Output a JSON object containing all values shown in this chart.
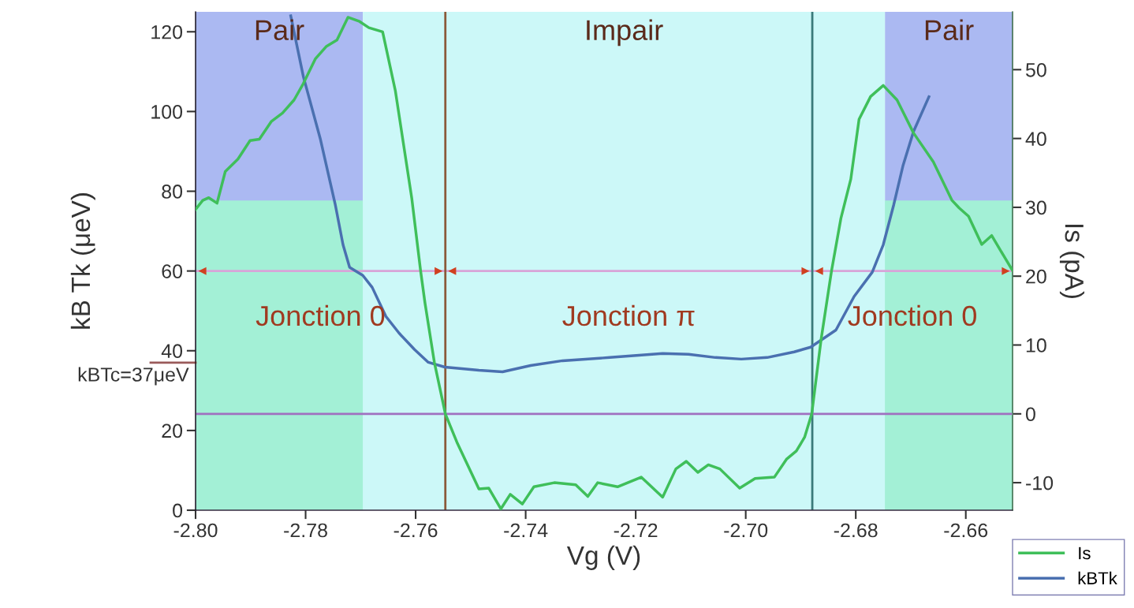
{
  "chart_data": {
    "type": "line",
    "xlabel": "Vg (V)",
    "ylabel": "kB Tk (μeV)",
    "y2label": "Is (pA)",
    "xlim": [
      -2.8,
      -2.6515
    ],
    "ylim": [
      0,
      125
    ],
    "y2lim": [
      -14,
      58.4
    ],
    "xticks": [
      {
        "value": -2.8,
        "label": "-2.80"
      },
      {
        "value": -2.78,
        "label": "-2.78"
      },
      {
        "value": -2.76,
        "label": "-2.76"
      },
      {
        "value": -2.74,
        "label": "-2.74"
      },
      {
        "value": -2.72,
        "label": "-2.72"
      },
      {
        "value": -2.7,
        "label": "-2.70"
      },
      {
        "value": -2.68,
        "label": "-2.68"
      },
      {
        "value": -2.66,
        "label": "-2.66"
      }
    ],
    "yticks": [
      0,
      20,
      40,
      60,
      80,
      100,
      120
    ],
    "y2ticks": [
      -10,
      0,
      10,
      20,
      30,
      40,
      50
    ],
    "grid": false,
    "legend": "bottom right",
    "marker": "none",
    "line_style": "solid",
    "series": [
      {
        "name": "Is",
        "color": "#3fbf5a",
        "axis": "y2",
        "x": [
          -2.8,
          -2.7987,
          -2.7976,
          -2.7961,
          -2.7946,
          -2.7923,
          -2.7901,
          -2.7884,
          -2.7862,
          -2.7842,
          -2.7821,
          -2.7804,
          -2.7782,
          -2.7762,
          -2.7743,
          -2.7723,
          -2.7702,
          -2.7685,
          -2.766,
          -2.7637,
          -2.7607,
          -2.7591,
          -2.7583,
          -2.7566,
          -2.7546,
          -2.7524,
          -2.7485,
          -2.7467,
          -2.7445,
          -2.7428,
          -2.7406,
          -2.7385,
          -2.7348,
          -2.7309,
          -2.7287,
          -2.7269,
          -2.7233,
          -2.719,
          -2.7151,
          -2.7127,
          -2.7108,
          -2.7087,
          -2.7068,
          -2.7047,
          -2.7011,
          -2.6983,
          -2.6948,
          -2.6926,
          -2.6908,
          -2.6893,
          -2.688,
          -2.6863,
          -2.6844,
          -2.6827,
          -2.6809,
          -2.6794,
          -2.6773,
          -2.675,
          -2.6725,
          -2.6695,
          -2.6659,
          -2.6625,
          -2.6612,
          -2.6595,
          -2.6571,
          -2.6553,
          -2.6515
        ],
        "values": [
          29.7,
          31.0,
          31.4,
          30.6,
          35.2,
          37.0,
          39.7,
          39.9,
          42.5,
          43.7,
          45.6,
          48.0,
          51.6,
          53.4,
          54.3,
          57.6,
          57.0,
          56.1,
          55.5,
          47.0,
          31.3,
          20.8,
          16.1,
          7.5,
          0.0,
          -4.3,
          -10.9,
          -10.8,
          -13.8,
          -11.7,
          -13.1,
          -10.6,
          -10.0,
          -10.3,
          -12.0,
          -10.0,
          -10.6,
          -9.2,
          -12.1,
          -8.0,
          -6.9,
          -8.5,
          -7.4,
          -8.0,
          -10.8,
          -9.4,
          -9.2,
          -6.6,
          -5.4,
          -3.4,
          0.0,
          10.8,
          20.8,
          28.4,
          34.1,
          42.8,
          46.1,
          47.7,
          45.6,
          40.8,
          36.6,
          31.0,
          29.9,
          28.7,
          24.6,
          25.9,
          20.8
        ]
      },
      {
        "name": "kBTk",
        "color": "#4a70b0",
        "x": [
          -2.7827,
          -2.7804,
          -2.7773,
          -2.7746,
          -2.7732,
          -2.772,
          -2.7696,
          -2.7679,
          -2.7654,
          -2.763,
          -2.7602,
          -2.7577,
          -2.7547,
          -2.7485,
          -2.7442,
          -2.7391,
          -2.7333,
          -2.7247,
          -2.7151,
          -2.7104,
          -2.7055,
          -2.7008,
          -2.6961,
          -2.6912,
          -2.6882,
          -2.6836,
          -2.6803,
          -2.677,
          -2.675,
          -2.6731,
          -2.6714,
          -2.6695,
          -2.6667
        ],
        "values": [
          124.0,
          108.7,
          93.0,
          76.6,
          66.6,
          60.9,
          58.9,
          55.9,
          48.6,
          44.4,
          40.3,
          37.1,
          35.9,
          35.1,
          34.7,
          36.3,
          37.5,
          38.3,
          39.3,
          39.1,
          38.3,
          37.9,
          38.3,
          39.7,
          40.9,
          45.2,
          53.6,
          59.7,
          66.6,
          76.6,
          86.5,
          95.0,
          103.7
        ]
      }
    ],
    "bands": [
      {
        "axis": "x",
        "from": -2.8,
        "to": -2.7696,
        "color": "#abb9f2",
        "label": "Pair"
      },
      {
        "axis": "x",
        "from": -2.6747,
        "to": -2.6515,
        "color": "#abb9f2",
        "label": "Pair"
      },
      {
        "axis": "y",
        "from": 0,
        "to": 77.7,
        "color": "#a3f0d6"
      },
      {
        "axis": "x",
        "from": -2.7696,
        "to": -2.6747,
        "color": "#ccf8f8",
        "label": "Impair"
      }
    ],
    "annotations": [
      "Jonction 0",
      "Jonction π",
      "Jonction 0"
    ],
    "ref_lines": [
      {
        "axis": "y",
        "value": 60,
        "color": "#d8a4d8"
      },
      {
        "axis": "x",
        "value": -2.7546,
        "color": "#8a5a3a"
      },
      {
        "axis": "x",
        "value": -2.6879,
        "color": "#3a7a7a"
      },
      {
        "axis": "y2",
        "value": 0,
        "color": "#a070c0"
      },
      {
        "axis": "y",
        "value": 37,
        "label": "kBTc=37μeV",
        "color": "#9a5a5a"
      }
    ]
  }
}
